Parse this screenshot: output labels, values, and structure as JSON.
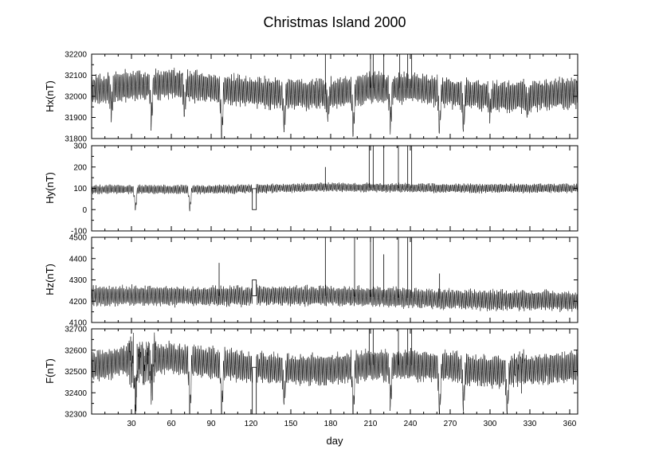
{
  "chart_data": [
    {
      "type": "line",
      "title": "Christmas Island 2000",
      "ylabel": "Hx(nT)",
      "xlim": [
        0,
        366
      ],
      "ylim": [
        31800,
        32200
      ],
      "yticks": [
        "31800",
        "31900",
        "32000",
        "32100",
        "32200"
      ],
      "series": [
        {
          "baseline": [
            [
              0,
              32030
            ],
            [
              30,
              32050
            ],
            [
              60,
              32060
            ],
            [
              90,
              32040
            ],
            [
              120,
              32020
            ],
            [
              150,
              32010
            ],
            [
              180,
              32010
            ],
            [
              210,
              32040
            ],
            [
              240,
              32040
            ],
            [
              270,
              32020
            ],
            [
              300,
              32000
            ],
            [
              330,
              32000
            ],
            [
              366,
              32020
            ]
          ],
          "daily_amplitude": 70,
          "dips": [
            [
              15,
              31930
            ],
            [
              45,
              31880
            ],
            [
              70,
              31930
            ],
            [
              98,
              31800
            ],
            [
              145,
              31860
            ],
            [
              178,
              31930
            ],
            [
              197,
              31830
            ],
            [
              225,
              31850
            ],
            [
              262,
              31840
            ],
            [
              280,
              31860
            ],
            [
              300,
              31920
            ],
            [
              328,
              31950
            ]
          ],
          "spikes": [
            [
              176,
              32200
            ],
            [
              210,
              32200
            ],
            [
              212,
              32200
            ],
            [
              220,
              32200
            ],
            [
              232,
              32200
            ],
            [
              238,
              32200
            ],
            [
              241,
              32200
            ]
          ]
        }
      ]
    },
    {
      "type": "line",
      "ylabel": "Hy(nT)",
      "xlim": [
        0,
        366
      ],
      "ylim": [
        -100,
        300
      ],
      "yticks": [
        "-100",
        "0",
        "100",
        "200",
        "300"
      ],
      "series": [
        {
          "baseline": [
            [
              0,
              95
            ],
            [
              90,
              95
            ],
            [
              180,
              105
            ],
            [
              270,
              100
            ],
            [
              366,
              100
            ]
          ],
          "daily_amplitude": 20,
          "dips": [
            [
              33,
              0
            ],
            [
              74,
              0
            ]
          ],
          "data_gap": [
            121,
            124,
            0
          ],
          "spikes": [
            [
              176,
              200
            ],
            [
              209,
              300
            ],
            [
              212,
              300
            ],
            [
              220,
              300
            ],
            [
              231,
              300
            ],
            [
              238,
              300
            ],
            [
              241,
              300
            ]
          ]
        }
      ]
    },
    {
      "type": "line",
      "ylabel": "Hz(nT)",
      "xlim": [
        0,
        366
      ],
      "ylim": [
        4100,
        4500
      ],
      "yticks": [
        "4100",
        "4200",
        "4300",
        "4400",
        "4500"
      ],
      "series": [
        {
          "baseline": [
            [
              0,
              4225
            ],
            [
              90,
              4225
            ],
            [
              180,
              4225
            ],
            [
              240,
              4215
            ],
            [
              300,
              4205
            ],
            [
              366,
              4200
            ]
          ],
          "daily_amplitude": 45,
          "data_gap": [
            121,
            124,
            4300
          ],
          "spikes": [
            [
              96,
              4380
            ],
            [
              176,
              4500
            ],
            [
              198,
              4500
            ],
            [
              210,
              4500
            ],
            [
              212,
              4500
            ],
            [
              220,
              4420
            ],
            [
              231,
              4500
            ],
            [
              238,
              4500
            ],
            [
              241,
              4500
            ],
            [
              262,
              4330
            ]
          ]
        }
      ]
    },
    {
      "type": "line",
      "ylabel": "F(nT)",
      "xlabel": "day",
      "xlim": [
        0,
        366
      ],
      "ylim": [
        32300,
        32700
      ],
      "yticks": [
        "32300",
        "32400",
        "32500",
        "32600",
        "32700"
      ],
      "xticks": [
        "30",
        "60",
        "90",
        "120",
        "150",
        "180",
        "210",
        "240",
        "270",
        "300",
        "330",
        "360"
      ],
      "series": [
        {
          "baseline": [
            [
              0,
              32520
            ],
            [
              30,
              32560
            ],
            [
              60,
              32560
            ],
            [
              90,
              32540
            ],
            [
              120,
              32520
            ],
            [
              150,
              32510
            ],
            [
              180,
              32510
            ],
            [
              210,
              32530
            ],
            [
              240,
              32530
            ],
            [
              270,
              32520
            ],
            [
              300,
              32500
            ],
            [
              330,
              32510
            ],
            [
              366,
              32520
            ]
          ],
          "daily_amplitude": 70,
          "dips": [
            [
              33,
              32300
            ],
            [
              45,
              32430
            ],
            [
              74,
              32300
            ],
            [
              98,
              32300
            ],
            [
              145,
              32370
            ],
            [
              197,
              32300
            ],
            [
              225,
              32350
            ],
            [
              262,
              32300
            ],
            [
              280,
              32350
            ],
            [
              313,
              32300
            ]
          ],
          "disturbed": [
            [
              28,
              48,
              80
            ],
            [
              318,
              326,
              40
            ]
          ],
          "data_gap": [
            121,
            124,
            32300
          ],
          "spikes": [
            [
              209,
              32700
            ],
            [
              212,
              32700
            ],
            [
              231,
              32700
            ],
            [
              238,
              32700
            ],
            [
              241,
              32700
            ]
          ]
        }
      ]
    }
  ]
}
